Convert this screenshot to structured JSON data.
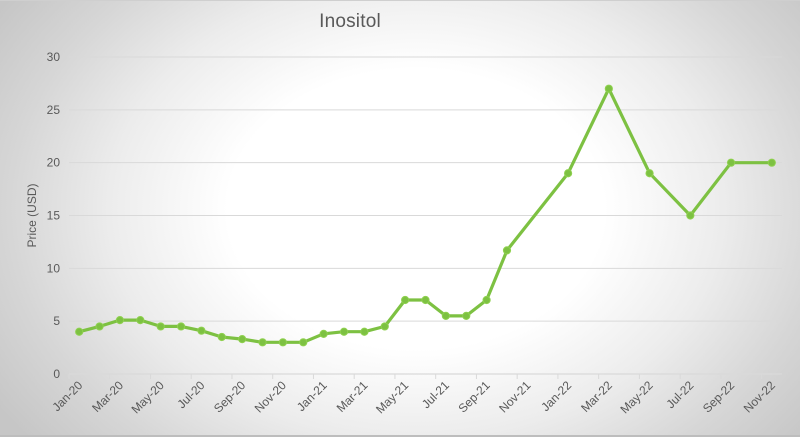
{
  "chart_data": {
    "type": "line",
    "title": "Inositol",
    "xlabel": "",
    "ylabel": "Price (USD)",
    "ylim": [
      0,
      30
    ],
    "yticks": [
      0,
      5,
      10,
      15,
      20,
      25,
      30
    ],
    "grid": true,
    "legend": null,
    "categories": [
      "Jan-20",
      "Feb-20",
      "Mar-20",
      "Apr-20",
      "May-20",
      "Jun-20",
      "Jul-20",
      "Aug-20",
      "Sep-20",
      "Oct-20",
      "Nov-20",
      "Dec-20",
      "Jan-21",
      "Feb-21",
      "Mar-21",
      "Apr-21",
      "May-21",
      "Jun-21",
      "Jul-21",
      "Aug-21",
      "Sep-21",
      "Oct-21",
      "Nov-21",
      "Dec-21",
      "Jan-22",
      "Feb-22",
      "Mar-22",
      "Apr-22",
      "May-22",
      "Jun-22",
      "Jul-22",
      "Aug-22",
      "Sep-22",
      "Oct-22",
      "Nov-22"
    ],
    "visible_tick_labels": [
      "Jan-20",
      "Mar-20",
      "May-20",
      "Jul-20",
      "Sep-20",
      "Nov-20",
      "Jan-21",
      "Mar-21",
      "May-21",
      "Jul-21",
      "Sep-21",
      "Nov-21",
      "Jan-22",
      "Mar-22",
      "May-22",
      "Jul-22",
      "Sep-22",
      "Nov-22"
    ],
    "series": [
      {
        "name": "Inositol",
        "color": "#7dc142",
        "values": [
          4.0,
          4.5,
          5.1,
          5.1,
          4.5,
          4.5,
          4.1,
          3.5,
          3.3,
          3.0,
          3.0,
          3.0,
          3.8,
          4.0,
          4.0,
          4.5,
          7.0,
          7.0,
          5.5,
          5.5,
          7.0,
          11.7,
          null,
          null,
          19.0,
          null,
          27.0,
          null,
          19.0,
          null,
          15.0,
          null,
          20.0,
          null,
          20.0
        ]
      }
    ]
  }
}
